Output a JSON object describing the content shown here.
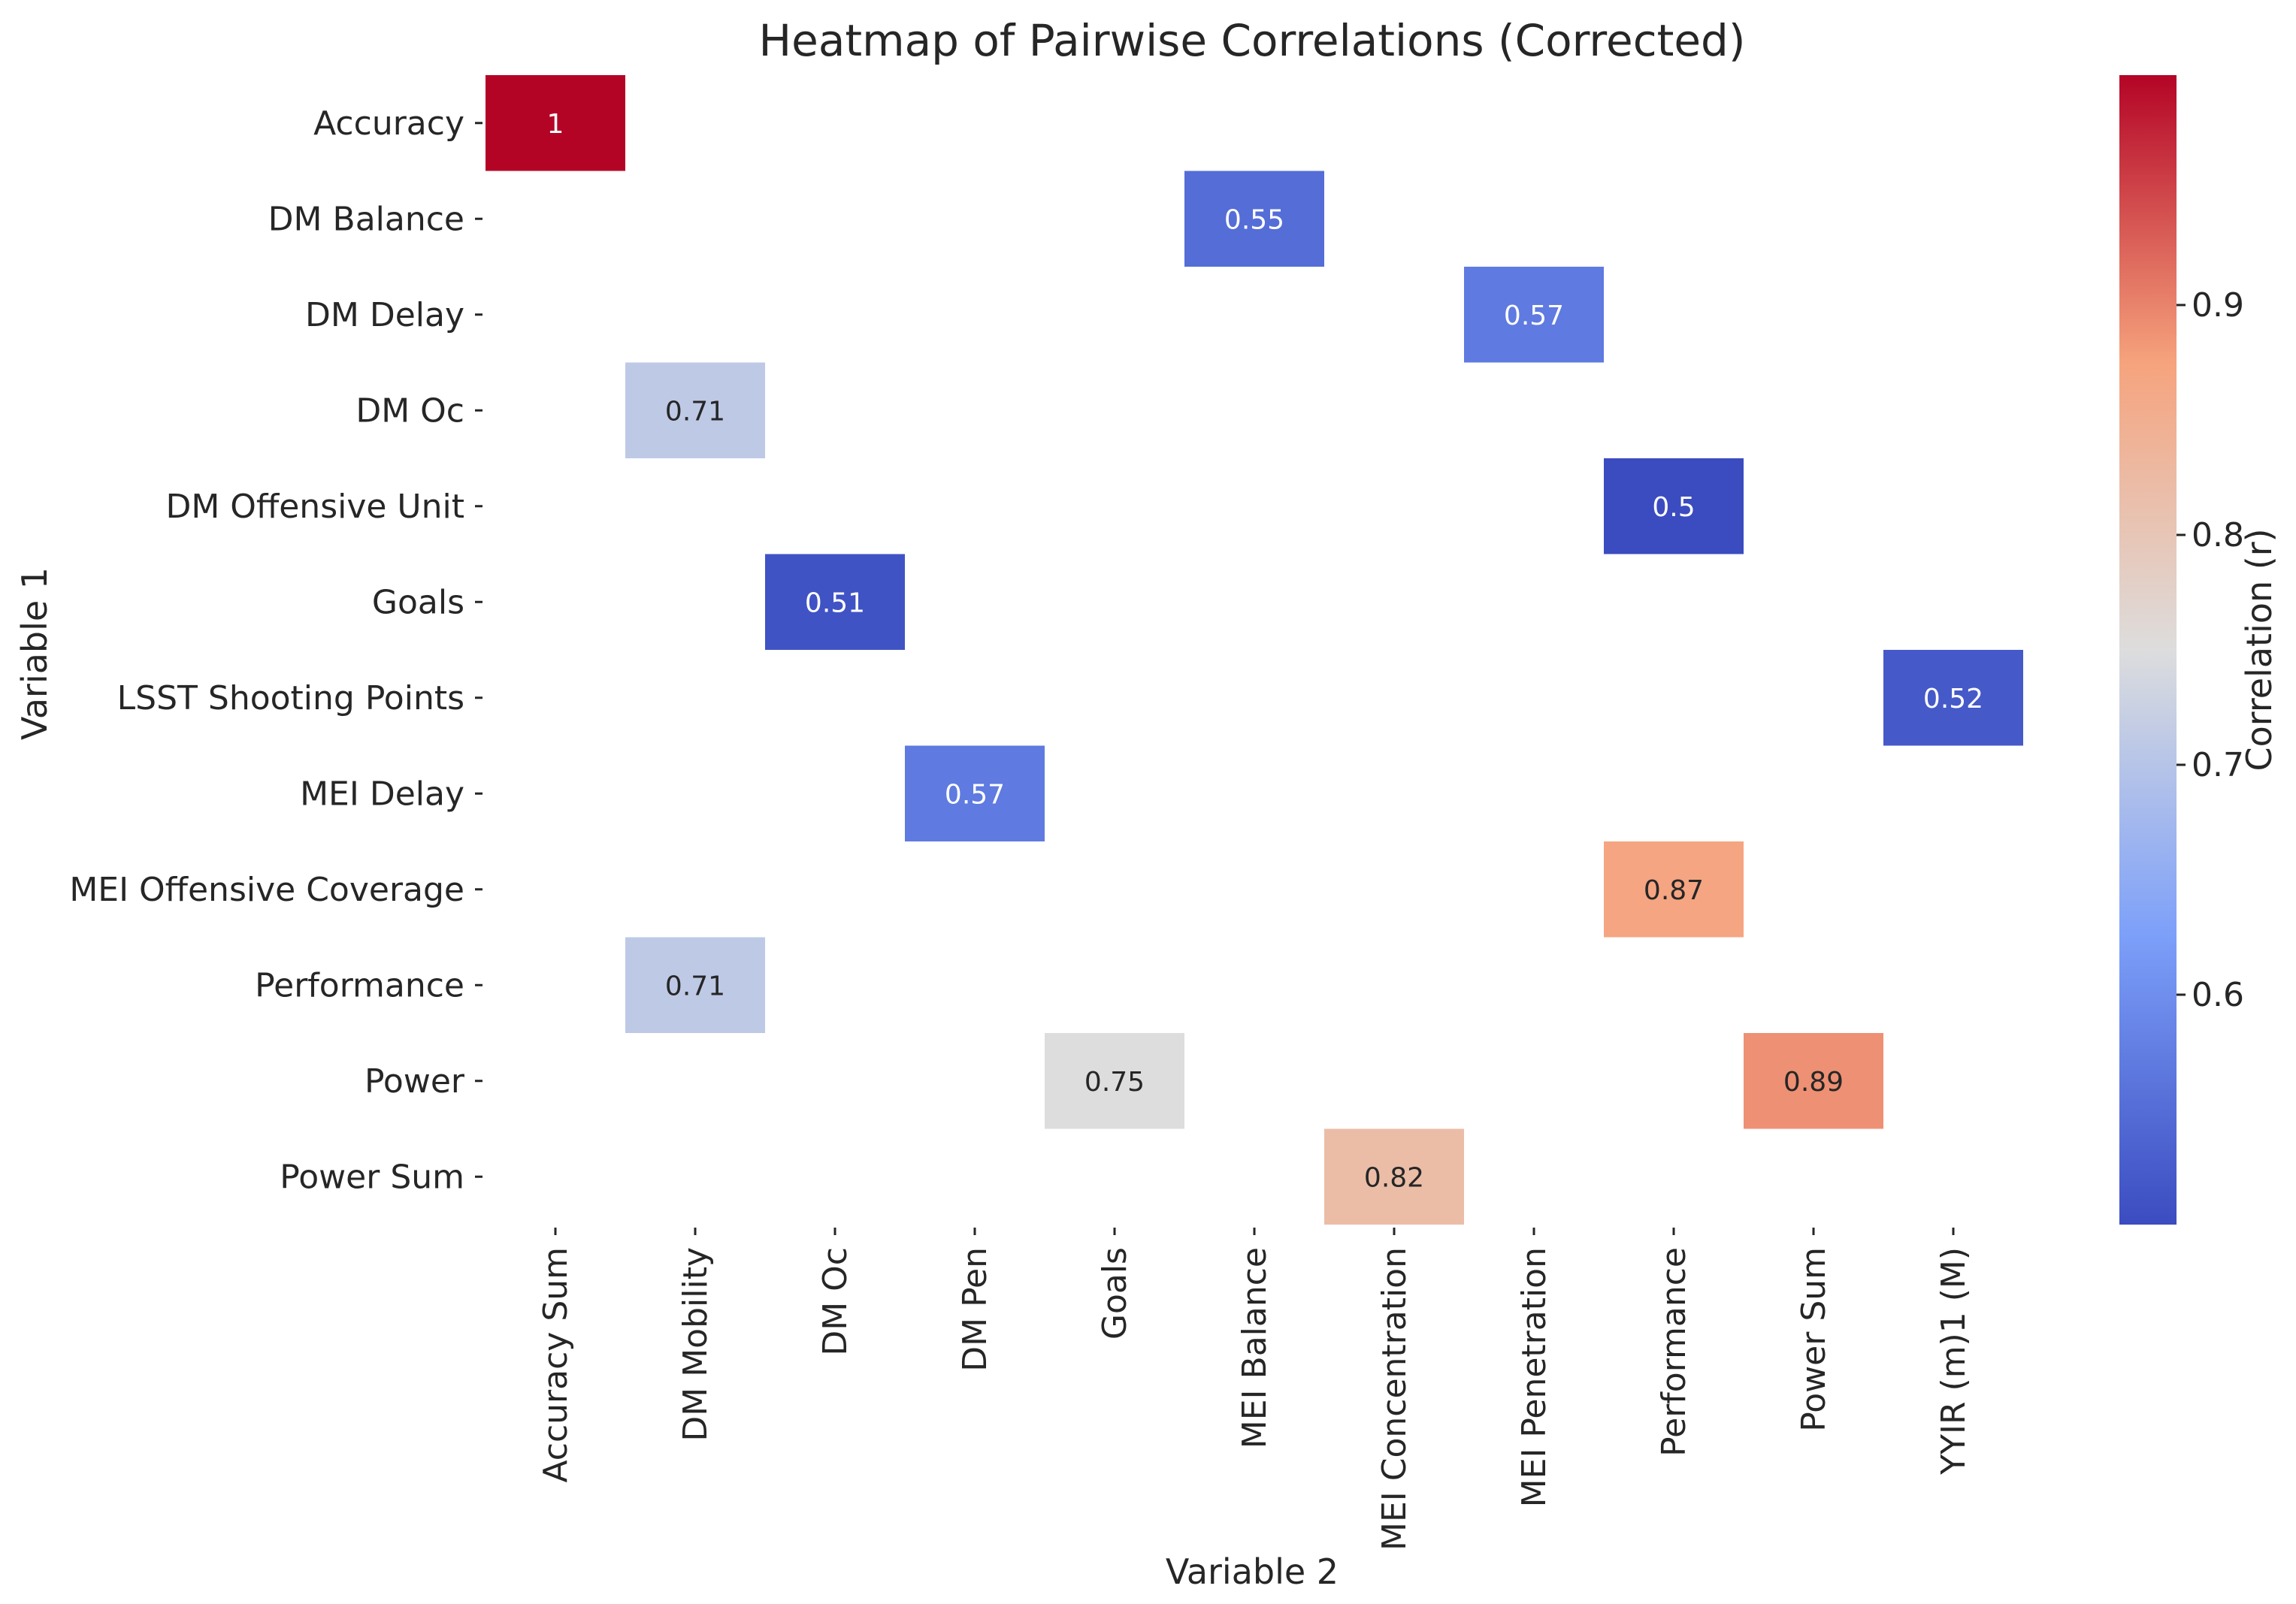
{
  "chart_data": {
    "type": "heatmap",
    "title": "Heatmap of Pairwise Correlations (Corrected)",
    "xlabel": "Variable 2",
    "ylabel": "Variable 1",
    "x_categories": [
      "Accuracy Sum",
      "DM Mobility",
      "DM Oc",
      "DM Pen",
      "Goals",
      "MEI Balance",
      "MEI Concentration",
      "MEI Penetration",
      "Performance",
      "Power Sum",
      "YYIR (m)1 (M)"
    ],
    "y_categories": [
      "Accuracy",
      "DM Balance",
      "DM Delay",
      "DM Oc",
      "DM Offensive Unit",
      "Goals",
      "LSST Shooting Points",
      "MEI Delay",
      "MEI Offensive Coverage",
      "Performance",
      "Power",
      "Power Sum"
    ],
    "cells": [
      {
        "row": "Accuracy",
        "col": "Accuracy Sum",
        "value": 1,
        "label": "1"
      },
      {
        "row": "DM Balance",
        "col": "MEI Balance",
        "value": 0.55,
        "label": "0.55"
      },
      {
        "row": "DM Delay",
        "col": "MEI Penetration",
        "value": 0.57,
        "label": "0.57"
      },
      {
        "row": "DM Oc",
        "col": "DM Mobility",
        "value": 0.71,
        "label": "0.71"
      },
      {
        "row": "DM Offensive Unit",
        "col": "Performance",
        "value": 0.5,
        "label": "0.5"
      },
      {
        "row": "Goals",
        "col": "DM Oc",
        "value": 0.51,
        "label": "0.51"
      },
      {
        "row": "LSST Shooting Points",
        "col": "YYIR (m)1 (M)",
        "value": 0.52,
        "label": "0.52"
      },
      {
        "row": "MEI Delay",
        "col": "DM Pen",
        "value": 0.57,
        "label": "0.57"
      },
      {
        "row": "MEI Offensive Coverage",
        "col": "Performance",
        "value": 0.87,
        "label": "0.87"
      },
      {
        "row": "Performance",
        "col": "DM Mobility",
        "value": 0.71,
        "label": "0.71"
      },
      {
        "row": "Power",
        "col": "Goals",
        "value": 0.75,
        "label": "0.75"
      },
      {
        "row": "Power",
        "col": "Power Sum",
        "value": 0.89,
        "label": "0.89"
      },
      {
        "row": "Power Sum",
        "col": "MEI Concentration",
        "value": 0.82,
        "label": "0.82"
      }
    ],
    "colorbar": {
      "label": "Correlation (r)",
      "vmin": 0.5,
      "vmax": 1.0,
      "ticks": [
        0.6,
        0.7,
        0.8,
        0.9
      ],
      "tick_labels": [
        "0.6",
        "0.7",
        "0.8",
        "0.9"
      ],
      "colormap": "coolwarm"
    }
  }
}
